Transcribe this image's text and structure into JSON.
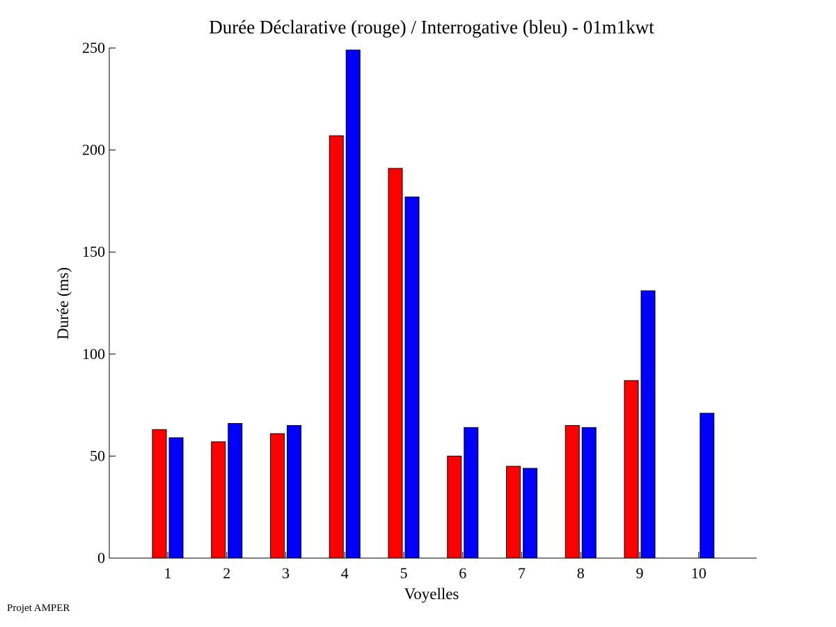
{
  "chart_data": {
    "type": "bar",
    "title": "Durée Déclarative (rouge) / Interrogative (bleu) - 01m1kwt",
    "xlabel": "Voyelles",
    "ylabel": "Durée (ms)",
    "ylim": [
      0,
      250
    ],
    "yticks": [
      0,
      50,
      100,
      150,
      200,
      250
    ],
    "categories": [
      "1",
      "2",
      "3",
      "4",
      "5",
      "6",
      "7",
      "8",
      "9",
      "10"
    ],
    "series": [
      {
        "values": [
          63,
          57,
          61,
          207,
          191,
          50,
          45,
          65,
          87,
          0
        ],
        "color": "#ff0000"
      },
      {
        "values": [
          59,
          66,
          65,
          249,
          177,
          64,
          44,
          64,
          131,
          71
        ],
        "color": "#0000ff"
      }
    ],
    "grid": false,
    "legend": "none"
  },
  "footer": {
    "text": "Projet AMPER"
  }
}
